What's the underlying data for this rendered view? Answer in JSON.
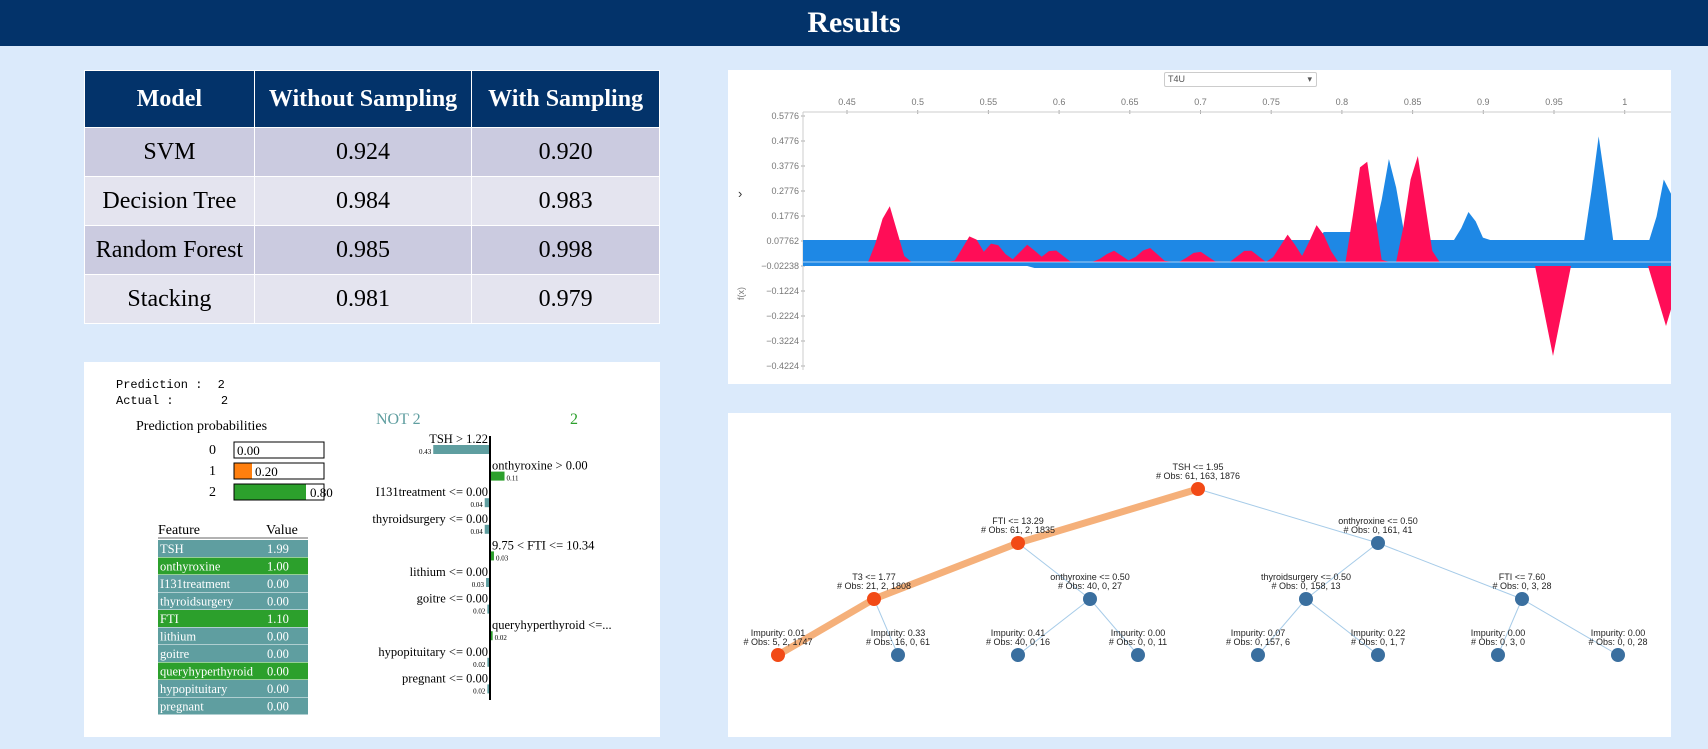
{
  "header": {
    "title": "Results"
  },
  "results_table": {
    "columns": [
      "Model",
      "Without Sampling",
      "With Sampling"
    ],
    "rows": [
      [
        "SVM",
        "0.924",
        "0.920"
      ],
      [
        "Decision Tree",
        "0.984",
        "0.983"
      ],
      [
        "Random Forest",
        "0.985",
        "0.998"
      ],
      [
        "Stacking",
        "0.981",
        "0.979"
      ]
    ]
  },
  "lime": {
    "prediction_label": "Prediction :",
    "prediction_value": "2",
    "actual_label": "Actual :",
    "actual_value": "2",
    "probabilities_title": "Prediction probabilities",
    "probabilities": [
      {
        "cls": "0",
        "text": "0.00",
        "value": 0.0,
        "color": "#1f77b4"
      },
      {
        "cls": "1",
        "text": "0.20",
        "value": 0.2,
        "color": "#ff7f0e"
      },
      {
        "cls": "2",
        "text": "0.80",
        "value": 0.8,
        "color": "#2ca02c"
      }
    ],
    "not_label": "NOT 2",
    "class_label": "2",
    "neg_color": "#5f9ea0",
    "pos_color": "#2ca02c",
    "weights": [
      {
        "label": "TSH > 1.22",
        "value": 0.43,
        "side": "neg",
        "text": "0.43"
      },
      {
        "label": "onthyroxine > 0.00",
        "value": 0.11,
        "side": "pos",
        "text": "0.11"
      },
      {
        "label": "I131treatment <= 0.00",
        "value": 0.04,
        "side": "neg",
        "text": "0.04"
      },
      {
        "label": "thyroidsurgery <= 0.00",
        "value": 0.04,
        "side": "neg",
        "text": "0.04"
      },
      {
        "label": "9.75 < FTI <= 10.34",
        "value": 0.03,
        "side": "pos",
        "text": "0.03"
      },
      {
        "label": "lithium <= 0.00",
        "value": 0.03,
        "side": "neg",
        "text": "0.03"
      },
      {
        "label": "goitre <= 0.00",
        "value": 0.02,
        "side": "neg",
        "text": "0.02"
      },
      {
        "label": "queryhyperthyroid <=...",
        "value": 0.02,
        "side": "pos",
        "text": "0.02"
      },
      {
        "label": "hypopituitary <= 0.00",
        "value": 0.02,
        "side": "neg",
        "text": "0.02"
      },
      {
        "label": "pregnant <= 0.00",
        "value": 0.02,
        "side": "neg",
        "text": "0.02"
      }
    ],
    "feature_table": {
      "headers": [
        "Feature",
        "Value"
      ],
      "rows": [
        {
          "feature": "TSH",
          "value": "1.99",
          "kind": "neg"
        },
        {
          "feature": "onthyroxine",
          "value": "1.00",
          "kind": "pos"
        },
        {
          "feature": "I131treatment",
          "value": "0.00",
          "kind": "neg"
        },
        {
          "feature": "thyroidsurgery",
          "value": "0.00",
          "kind": "neg"
        },
        {
          "feature": "FTI",
          "value": "1.10",
          "kind": "pos"
        },
        {
          "feature": "lithium",
          "value": "0.00",
          "kind": "neg"
        },
        {
          "feature": "goitre",
          "value": "0.00",
          "kind": "neg"
        },
        {
          "feature": "queryhyperthyroid",
          "value": "0.00",
          "kind": "pos"
        },
        {
          "feature": "hypopituitary",
          "value": "0.00",
          "kind": "neg"
        },
        {
          "feature": "pregnant",
          "value": "0.00",
          "kind": "neg"
        }
      ]
    }
  },
  "shap": {
    "dropdown_value": "T4U",
    "collapse_glyph": "›",
    "y_axis_label": "f(x)",
    "x_ticks": [
      "0.45",
      "0.5",
      "0.55",
      "0.6",
      "0.65",
      "0.7",
      "0.75",
      "0.8",
      "0.85",
      "0.9",
      "0.95",
      "1"
    ],
    "y_ticks": [
      "0.5776",
      "0.4776",
      "0.3776",
      "0.2776",
      "0.1776",
      "0.07762",
      "−0.02238",
      "−0.1224",
      "−0.2224",
      "−0.3224",
      "−0.4224"
    ],
    "pos_color": "#ff0d57",
    "neg_color": "#1e88e5"
  },
  "tree": {
    "edge_color": "#6aa8d8",
    "path_color": "#f5b07a",
    "node_color": "#3a6f9f",
    "path_node_color": "#f24a16",
    "nodes": [
      {
        "id": "n0",
        "line1": "TSH <= 1.95",
        "line2": "# Obs: 61, 163, 1876",
        "on_path": true
      },
      {
        "id": "n1",
        "line1": "FTI <= 13.29",
        "line2": "# Obs: 61, 2, 1835",
        "on_path": true
      },
      {
        "id": "n2",
        "line1": "onthyroxine <= 0.50",
        "line2": "# Obs: 0, 161, 41",
        "on_path": false
      },
      {
        "id": "n3",
        "line1": "T3 <= 1.77",
        "line2": "# Obs: 21, 2, 1808",
        "on_path": true
      },
      {
        "id": "n4",
        "line1": "onthyroxine <= 0.50",
        "line2": "# Obs: 40, 0, 27",
        "on_path": false
      },
      {
        "id": "n5",
        "line1": "thyroidsurgery <= 0.50",
        "line2": "# Obs: 0, 158, 13",
        "on_path": false
      },
      {
        "id": "n6",
        "line1": "FTI <= 7.60",
        "line2": "# Obs: 0, 3, 28",
        "on_path": false
      },
      {
        "id": "n7",
        "line1": "Impurity: 0.01",
        "line2": "# Obs: 5, 2, 1747",
        "on_path": true
      },
      {
        "id": "n8",
        "line1": "Impurity: 0.33",
        "line2": "# Obs: 16, 0, 61",
        "on_path": false
      },
      {
        "id": "n9",
        "line1": "Impurity: 0.41",
        "line2": "# Obs: 40, 0, 16",
        "on_path": false
      },
      {
        "id": "n10",
        "line1": "Impurity: 0.00",
        "line2": "# Obs: 0, 0, 11",
        "on_path": false
      },
      {
        "id": "n11",
        "line1": "Impurity: 0.07",
        "line2": "# Obs: 0, 157, 6",
        "on_path": false
      },
      {
        "id": "n12",
        "line1": "Impurity: 0.22",
        "line2": "# Obs: 0, 1, 7",
        "on_path": false
      },
      {
        "id": "n13",
        "line1": "Impurity: 0.00",
        "line2": "# Obs: 0, 3, 0",
        "on_path": false
      },
      {
        "id": "n14",
        "line1": "Impurity: 0.00",
        "line2": "# Obs: 0, 0, 28",
        "on_path": false
      }
    ]
  }
}
